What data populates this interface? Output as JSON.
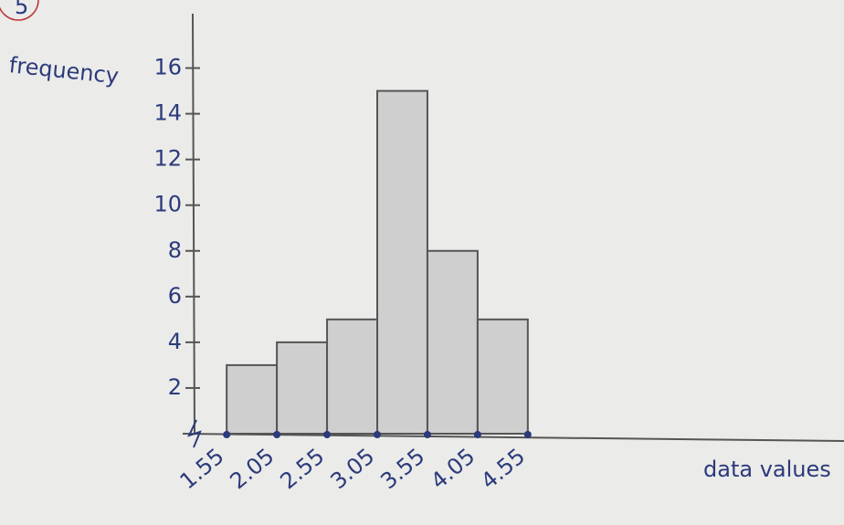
{
  "chart_data": {
    "type": "histogram",
    "problem_number": "5",
    "ylabel": "frequency",
    "xlabel": "data values",
    "bins": [
      1.55,
      2.05,
      2.55,
      3.05,
      3.55,
      4.05,
      4.55
    ],
    "counts": [
      3,
      4,
      5,
      15,
      8,
      5
    ],
    "color": "#cfcfcf",
    "ylim": [
      0,
      17.5
    ],
    "yticks": [
      2,
      4,
      6,
      8,
      10,
      12,
      14,
      16
    ],
    "xlim": [
      1.23,
      7.7
    ]
  }
}
